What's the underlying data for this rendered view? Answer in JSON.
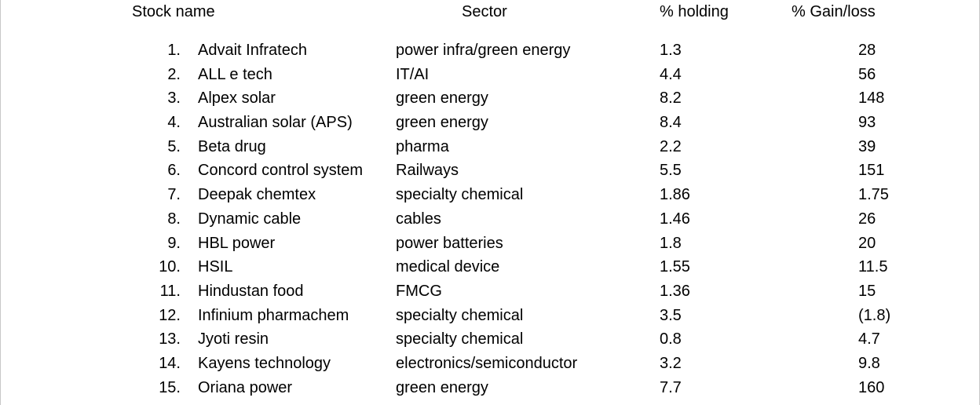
{
  "headers": {
    "stock_name": "Stock name",
    "sector": "Sector",
    "holding": "% holding",
    "gain_loss": "% Gain/loss"
  },
  "rows": [
    {
      "num": "1.",
      "name": "Advait Infratech",
      "sector": "power infra/green energy",
      "holding": "1.3",
      "gain": "28"
    },
    {
      "num": "2.",
      "name": "ALL e tech",
      "sector": "IT/AI",
      "holding": "4.4",
      "gain": "56"
    },
    {
      "num": "3.",
      "name": "Alpex solar",
      "sector": "green energy",
      "holding": "8.2",
      "gain": "148"
    },
    {
      "num": "4.",
      "name": "Australian solar (APS)",
      "sector": "green energy",
      "holding": "8.4",
      "gain": "93"
    },
    {
      "num": "5.",
      "name": "Beta drug",
      "sector": "pharma",
      "holding": "2.2",
      "gain": "39"
    },
    {
      "num": "6.",
      "name": "Concord control system",
      "sector": "Railways",
      "holding": "5.5",
      "gain": "151"
    },
    {
      "num": "7.",
      "name": "Deepak chemtex",
      "sector": "specialty chemical",
      "holding": "1.86",
      "gain": "1.75"
    },
    {
      "num": "8.",
      "name": "Dynamic cable",
      "sector": "cables",
      "holding": "1.46",
      "gain": "26"
    },
    {
      "num": "9.",
      "name": "HBL power",
      "sector": "power batteries",
      "holding": "1.8",
      "gain": "20"
    },
    {
      "num": "10.",
      "name": "HSIL",
      "sector": "medical device",
      "holding": "1.55",
      "gain": "11.5"
    },
    {
      "num": "11.",
      "name": "Hindustan food",
      "sector": "FMCG",
      "holding": "1.36",
      "gain": "15"
    },
    {
      "num": "12.",
      "name": "Infinium pharmachem",
      "sector": "specialty chemical",
      "holding": "3.5",
      "gain": "(1.8)"
    },
    {
      "num": "13.",
      "name": "Jyoti resin",
      "sector": "specialty chemical",
      "holding": "0.8",
      "gain": "4.7"
    },
    {
      "num": "14.",
      "name": "Kayens technology",
      "sector": "electronics/semiconductor",
      "holding": "3.2",
      "gain": "9.8"
    },
    {
      "num": "15.",
      "name": "Oriana power",
      "sector": "green energy",
      "holding": "7.7",
      "gain": "160"
    }
  ]
}
